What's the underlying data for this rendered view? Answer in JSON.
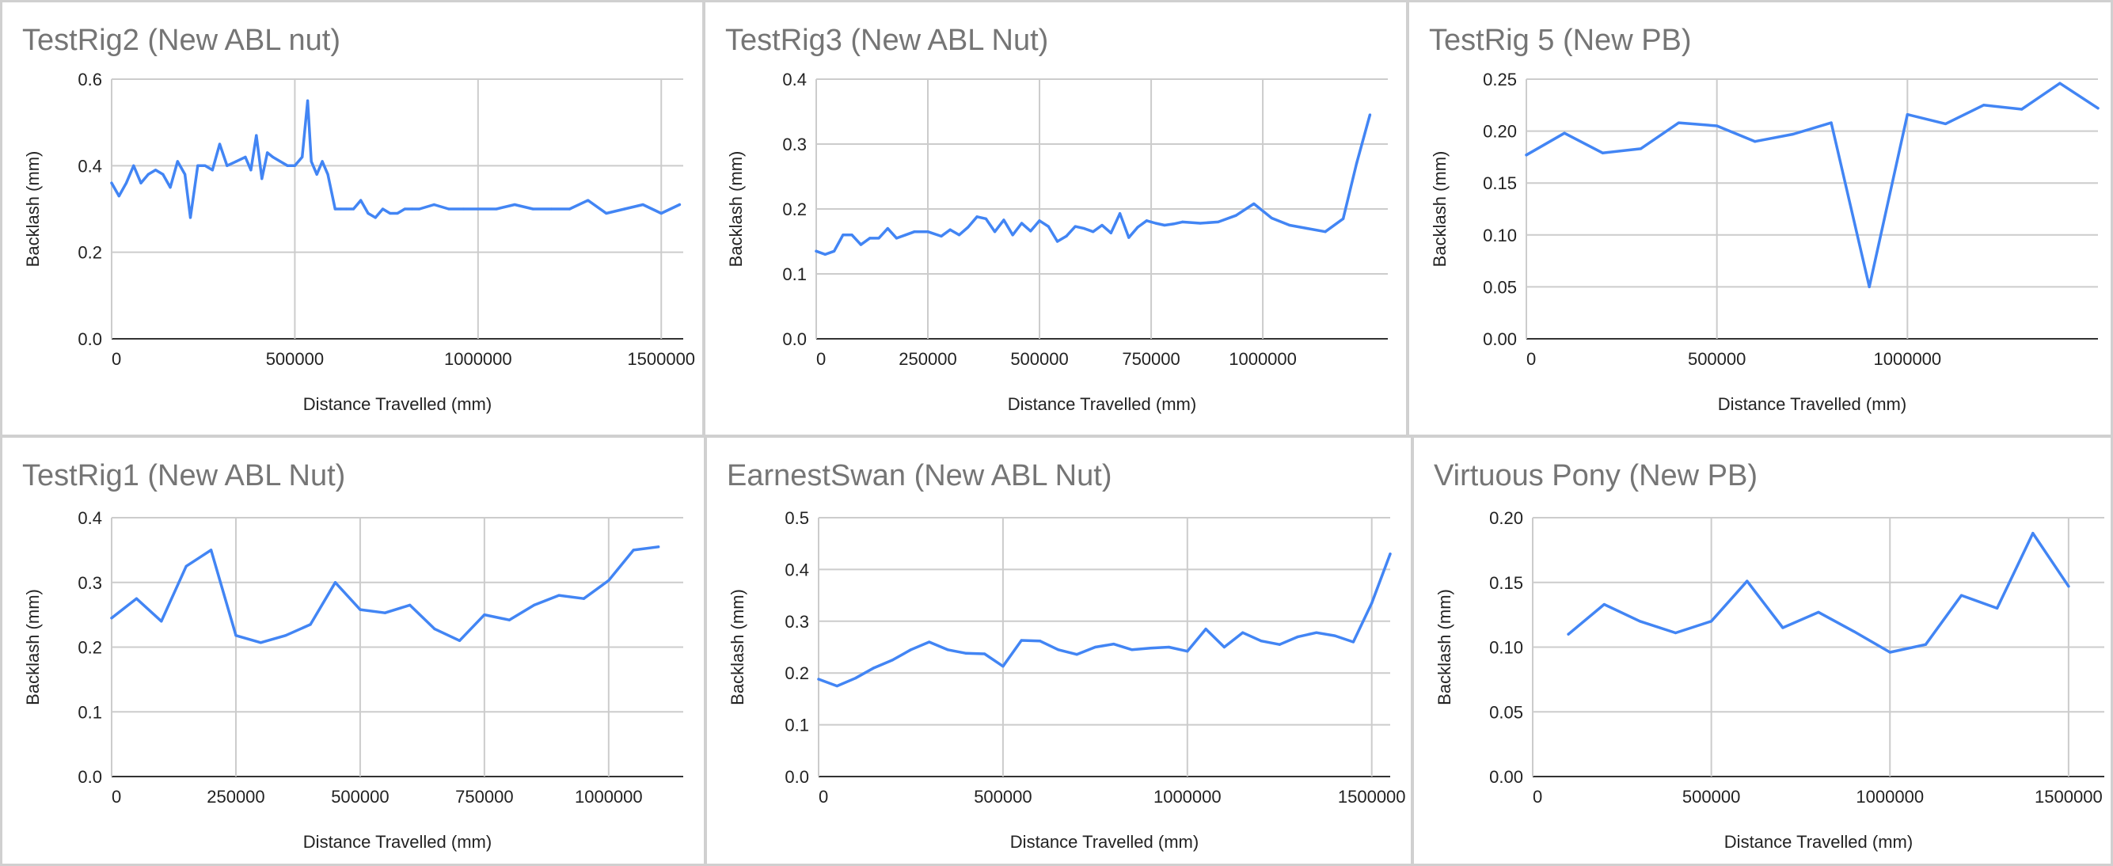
{
  "chart_data": [
    {
      "type": "line",
      "title": "TestRig2 (New ABL nut)",
      "xlabel": "Distance Travelled (mm)",
      "ylabel": "Backlash (mm)",
      "xlim": [
        0,
        1560000
      ],
      "ylim": [
        0,
        0.6
      ],
      "xticks": [
        "0",
        "500000",
        "1000000",
        "1500000"
      ],
      "yticks": [
        "0.0",
        "0.2",
        "0.4",
        "0.6"
      ],
      "xtick_values": [
        0,
        500000,
        1000000,
        1500000
      ],
      "ytick_values": [
        0,
        0.2,
        0.4,
        0.6
      ],
      "grid": true,
      "color": "#4285f4",
      "x": [
        0,
        20000,
        40000,
        60000,
        80000,
        100000,
        120000,
        140000,
        160000,
        180000,
        200000,
        215000,
        235000,
        255000,
        275000,
        295000,
        315000,
        340000,
        365000,
        380000,
        395000,
        410000,
        425000,
        440000,
        460000,
        480000,
        500000,
        520000,
        535000,
        545000,
        560000,
        575000,
        590000,
        610000,
        625000,
        640000,
        660000,
        680000,
        700000,
        720000,
        740000,
        760000,
        780000,
        800000,
        820000,
        840000,
        880000,
        920000,
        960000,
        1000000,
        1050000,
        1100000,
        1150000,
        1200000,
        1250000,
        1300000,
        1350000,
        1400000,
        1450000,
        1500000,
        1550000
      ],
      "values": [
        0.36,
        0.33,
        0.36,
        0.4,
        0.36,
        0.38,
        0.39,
        0.38,
        0.35,
        0.41,
        0.38,
        0.28,
        0.4,
        0.4,
        0.39,
        0.45,
        0.4,
        0.41,
        0.42,
        0.39,
        0.47,
        0.37,
        0.43,
        0.42,
        0.41,
        0.4,
        0.4,
        0.42,
        0.55,
        0.41,
        0.38,
        0.41,
        0.38,
        0.3,
        0.3,
        0.3,
        0.3,
        0.32,
        0.29,
        0.28,
        0.3,
        0.29,
        0.29,
        0.3,
        0.3,
        0.3,
        0.31,
        0.3,
        0.3,
        0.3,
        0.3,
        0.31,
        0.3,
        0.3,
        0.3,
        0.32,
        0.29,
        0.3,
        0.31,
        0.29,
        0.31
      ]
    },
    {
      "type": "line",
      "title": "TestRig3 (New ABL Nut)",
      "xlabel": "Distance Travelled (mm)",
      "ylabel": "Backlash (mm)",
      "xlim": [
        0,
        1280000
      ],
      "ylim": [
        0,
        0.4
      ],
      "xticks": [
        "0",
        "250000",
        "500000",
        "750000",
        "1000000"
      ],
      "yticks": [
        "0.0",
        "0.1",
        "0.2",
        "0.3",
        "0.4"
      ],
      "xtick_values": [
        0,
        250000,
        500000,
        750000,
        1000000
      ],
      "ytick_values": [
        0,
        0.1,
        0.2,
        0.3,
        0.4
      ],
      "grid": true,
      "color": "#4285f4",
      "x": [
        0,
        20000,
        40000,
        60000,
        80000,
        100000,
        120000,
        140000,
        160000,
        180000,
        200000,
        220000,
        250000,
        280000,
        300000,
        320000,
        340000,
        360000,
        380000,
        400000,
        420000,
        440000,
        460000,
        480000,
        500000,
        520000,
        540000,
        560000,
        580000,
        600000,
        620000,
        640000,
        660000,
        680000,
        700000,
        720000,
        740000,
        760000,
        780000,
        800000,
        820000,
        860000,
        900000,
        940000,
        980000,
        1020000,
        1060000,
        1100000,
        1140000,
        1180000,
        1210000,
        1240000
      ],
      "values": [
        0.135,
        0.13,
        0.135,
        0.16,
        0.16,
        0.145,
        0.155,
        0.155,
        0.17,
        0.155,
        0.16,
        0.165,
        0.165,
        0.158,
        0.168,
        0.16,
        0.172,
        0.188,
        0.185,
        0.165,
        0.183,
        0.16,
        0.178,
        0.166,
        0.182,
        0.173,
        0.15,
        0.158,
        0.173,
        0.17,
        0.165,
        0.175,
        0.163,
        0.193,
        0.156,
        0.172,
        0.182,
        0.178,
        0.175,
        0.177,
        0.18,
        0.178,
        0.18,
        0.19,
        0.208,
        0.186,
        0.175,
        0.17,
        0.165,
        0.185,
        0.27,
        0.345
      ]
    },
    {
      "type": "line",
      "title": "TestRig 5 (New PB)",
      "xlabel": "Distance Travelled (mm)",
      "ylabel": "Backlash (mm)",
      "xlim": [
        0,
        1500000
      ],
      "ylim": [
        0,
        0.25
      ],
      "xticks": [
        "0",
        "500000",
        "1000000"
      ],
      "yticks": [
        "0.00",
        "0.05",
        "0.10",
        "0.15",
        "0.20",
        "0.25"
      ],
      "xtick_values": [
        0,
        500000,
        1000000
      ],
      "ytick_values": [
        0,
        0.05,
        0.1,
        0.15,
        0.2,
        0.25
      ],
      "grid": true,
      "color": "#4285f4",
      "x": [
        0,
        100000,
        200000,
        300000,
        400000,
        500000,
        600000,
        700000,
        800000,
        900000,
        1000000,
        1100000,
        1200000,
        1300000,
        1400000,
        1500000
      ],
      "values": [
        0.177,
        0.198,
        0.179,
        0.183,
        0.208,
        0.205,
        0.19,
        0.197,
        0.208,
        0.05,
        0.216,
        0.207,
        0.225,
        0.221,
        0.246,
        0.222
      ]
    },
    {
      "type": "line",
      "title": "TestRig1 (New ABL Nut)",
      "xlabel": "Distance Travelled (mm)",
      "ylabel": "Backlash (mm)",
      "xlim": [
        0,
        1150000
      ],
      "ylim": [
        0,
        0.4
      ],
      "xticks": [
        "0",
        "250000",
        "500000",
        "750000",
        "1000000"
      ],
      "yticks": [
        "0.0",
        "0.1",
        "0.2",
        "0.3",
        "0.4"
      ],
      "xtick_values": [
        0,
        250000,
        500000,
        750000,
        1000000
      ],
      "ytick_values": [
        0,
        0.1,
        0.2,
        0.3,
        0.4
      ],
      "grid": true,
      "color": "#4285f4",
      "x": [
        0,
        50000,
        100000,
        150000,
        200000,
        250000,
        300000,
        350000,
        400000,
        450000,
        500000,
        550000,
        600000,
        650000,
        700000,
        750000,
        800000,
        850000,
        900000,
        950000,
        1000000,
        1050000,
        1100000
      ],
      "values": [
        0.245,
        0.275,
        0.24,
        0.325,
        0.35,
        0.218,
        0.207,
        0.218,
        0.235,
        0.3,
        0.258,
        0.253,
        0.265,
        0.228,
        0.21,
        0.25,
        0.242,
        0.265,
        0.28,
        0.275,
        0.303,
        0.35,
        0.355
      ]
    },
    {
      "type": "line",
      "title": "EarnestSwan (New ABL Nut)",
      "xlabel": "Distance Travelled (mm)",
      "ylabel": "Backlash (mm)",
      "xlim": [
        0,
        1550000
      ],
      "ylim": [
        0,
        0.5
      ],
      "xticks": [
        "0",
        "500000",
        "1000000",
        "1500000"
      ],
      "yticks": [
        "0.0",
        "0.1",
        "0.2",
        "0.3",
        "0.4",
        "0.5"
      ],
      "xtick_values": [
        0,
        500000,
        1000000,
        1500000
      ],
      "ytick_values": [
        0,
        0.1,
        0.2,
        0.3,
        0.4,
        0.5
      ],
      "grid": true,
      "color": "#4285f4",
      "x": [
        0,
        50000,
        100000,
        150000,
        200000,
        250000,
        300000,
        350000,
        400000,
        450000,
        500000,
        550000,
        600000,
        650000,
        700000,
        750000,
        800000,
        850000,
        900000,
        950000,
        1000000,
        1050000,
        1100000,
        1150000,
        1200000,
        1250000,
        1300000,
        1350000,
        1400000,
        1450000,
        1500000,
        1550000
      ],
      "values": [
        0.188,
        0.175,
        0.19,
        0.21,
        0.225,
        0.245,
        0.26,
        0.245,
        0.238,
        0.237,
        0.213,
        0.263,
        0.262,
        0.245,
        0.236,
        0.25,
        0.256,
        0.245,
        0.248,
        0.25,
        0.242,
        0.285,
        0.25,
        0.278,
        0.262,
        0.255,
        0.27,
        0.278,
        0.272,
        0.26,
        0.335,
        0.43
      ]
    },
    {
      "type": "line",
      "title": "Virtuous Pony (New PB)",
      "xlabel": "Distance Travelled (mm)",
      "ylabel": "Backlash (mm)",
      "xlim": [
        0,
        1600000
      ],
      "ylim": [
        0,
        0.2
      ],
      "xticks": [
        "0",
        "500000",
        "1000000",
        "1500000"
      ],
      "yticks": [
        "0.00",
        "0.05",
        "0.10",
        "0.15",
        "0.20"
      ],
      "xtick_values": [
        0,
        500000,
        1000000,
        1500000
      ],
      "ytick_values": [
        0,
        0.05,
        0.1,
        0.15,
        0.2
      ],
      "grid": true,
      "color": "#4285f4",
      "x": [
        100000,
        200000,
        300000,
        400000,
        500000,
        600000,
        700000,
        800000,
        900000,
        1000000,
        1100000,
        1200000,
        1300000,
        1400000,
        1500000
      ],
      "values": [
        0.11,
        0.133,
        0.12,
        0.111,
        0.12,
        0.151,
        0.115,
        0.127,
        0.112,
        0.096,
        0.102,
        0.14,
        0.13,
        0.188,
        0.147
      ]
    }
  ]
}
